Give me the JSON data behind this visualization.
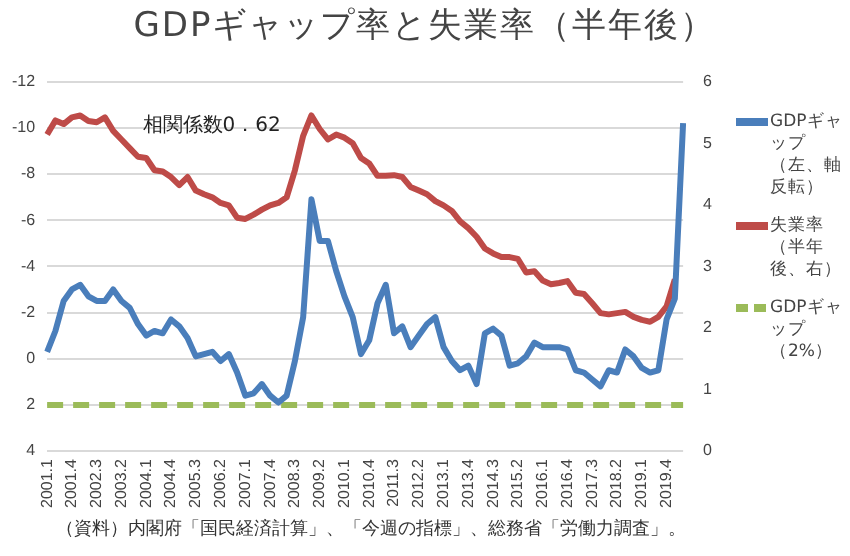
{
  "chart_data": {
    "type": "line",
    "title": "GDPギャップ率と失業率（半年後）",
    "categories": [
      "2001.1",
      null,
      null,
      "2001.4",
      null,
      null,
      "2002.3",
      null,
      null,
      "2003.2",
      null,
      null,
      "2004.1",
      null,
      null,
      "2004.4",
      null,
      null,
      "2005.3",
      null,
      null,
      "2006.2",
      null,
      null,
      "2007.1",
      null,
      null,
      "2007.4",
      null,
      null,
      "2008.3",
      null,
      null,
      "2009.2",
      null,
      null,
      "2010.1",
      null,
      null,
      "2010.4",
      null,
      null,
      "2011.3",
      null,
      null,
      "2012.2",
      null,
      null,
      "2013.1",
      null,
      null,
      "2013.4",
      null,
      null,
      "2014.3",
      null,
      null,
      "2015.2",
      null,
      null,
      "2016.1",
      null,
      null,
      "2016.4",
      null,
      null,
      "2017.3",
      null,
      null,
      "2018.2",
      null,
      null,
      "2019.1",
      null,
      null,
      "2019.4",
      null,
      null
    ],
    "series": [
      {
        "name": "GDPギャップ（左、軸反転）",
        "color": "#4a7ebb",
        "axis": "y",
        "values": [
          -0.3,
          -1.2,
          -2.5,
          -3.0,
          -3.2,
          -2.7,
          -2.5,
          -2.5,
          -3.0,
          -2.5,
          -2.2,
          -1.5,
          -1.0,
          -1.2,
          -1.1,
          -1.7,
          -1.4,
          -0.9,
          -0.1,
          -0.2,
          -0.3,
          0.1,
          -0.2,
          0.6,
          1.6,
          1.5,
          1.1,
          1.6,
          1.9,
          1.6,
          0.1,
          -1.8,
          -6.9,
          -5.1,
          -5.1,
          -3.8,
          -2.7,
          -1.8,
          -0.2,
          -0.8,
          -2.4,
          -3.2,
          -1.1,
          -1.4,
          -0.5,
          -1.0,
          -1.5,
          -1.8,
          -0.5,
          0.1,
          0.5,
          0.3,
          1.1,
          -1.1,
          -1.3,
          -1.0,
          0.3,
          0.2,
          -0.1,
          -0.7,
          -0.5,
          -0.5,
          -0.5,
          -0.4,
          0.5,
          0.6,
          0.9,
          1.2,
          0.5,
          0.6,
          -0.4,
          -0.1,
          0.4,
          0.6,
          0.5,
          -1.7,
          -2.6,
          -10.2
        ]
      },
      {
        "name": "失業率（半年後、右）",
        "color": "#be4b48",
        "axis": "y2",
        "values": [
          5.14,
          5.37,
          5.31,
          5.42,
          5.45,
          5.36,
          5.34,
          5.42,
          5.2,
          5.06,
          4.92,
          4.78,
          4.76,
          4.56,
          4.54,
          4.45,
          4.32,
          4.45,
          4.23,
          4.17,
          4.12,
          4.03,
          3.99,
          3.79,
          3.77,
          3.84,
          3.92,
          3.99,
          4.03,
          4.12,
          4.56,
          5.12,
          5.45,
          5.23,
          5.06,
          5.14,
          5.09,
          5.0,
          4.76,
          4.67,
          4.47,
          4.47,
          4.48,
          4.45,
          4.29,
          4.23,
          4.17,
          4.06,
          3.99,
          3.9,
          3.73,
          3.62,
          3.48,
          3.29,
          3.21,
          3.15,
          3.15,
          3.12,
          2.9,
          2.92,
          2.77,
          2.71,
          2.73,
          2.76,
          2.57,
          2.55,
          2.4,
          2.24,
          2.22,
          2.24,
          2.26,
          2.18,
          2.13,
          2.1,
          2.18,
          2.35,
          2.79,
          null
        ]
      },
      {
        "name": "GDPギャップ（2%）",
        "color": "#9bbb59",
        "axis": "y",
        "line_style": "dashed",
        "values": [
          2,
          2,
          2,
          2,
          2,
          2,
          2,
          2,
          2,
          2,
          2,
          2,
          2,
          2,
          2,
          2,
          2,
          2,
          2,
          2,
          2,
          2,
          2,
          2,
          2,
          2,
          2,
          2,
          2,
          2,
          2,
          2,
          2,
          2,
          2,
          2,
          2,
          2,
          2,
          2,
          2,
          2,
          2,
          2,
          2,
          2,
          2,
          2,
          2,
          2,
          2,
          2,
          2,
          2,
          2,
          2,
          2,
          2,
          2,
          2,
          2,
          2,
          2,
          2,
          2,
          2,
          2,
          2,
          2,
          2,
          2,
          2,
          2,
          2,
          2,
          2,
          2,
          2
        ]
      }
    ],
    "ylim": [
      4,
      -12
    ],
    "yticks": [
      -12,
      -10,
      -8,
      -6,
      -4,
      -2,
      0,
      2,
      4
    ],
    "y2lim": [
      0,
      6
    ],
    "y2ticks": [
      0,
      1,
      2,
      3,
      4,
      5,
      6
    ],
    "grid": "y",
    "legend": "right",
    "marker": "none",
    "line_style": "solid",
    "annotations": [
      "相関係数0．62",
      "（資料）内閣府「国民経済計算」、「今週の指標」、総務省「労働力調査」。"
    ]
  }
}
